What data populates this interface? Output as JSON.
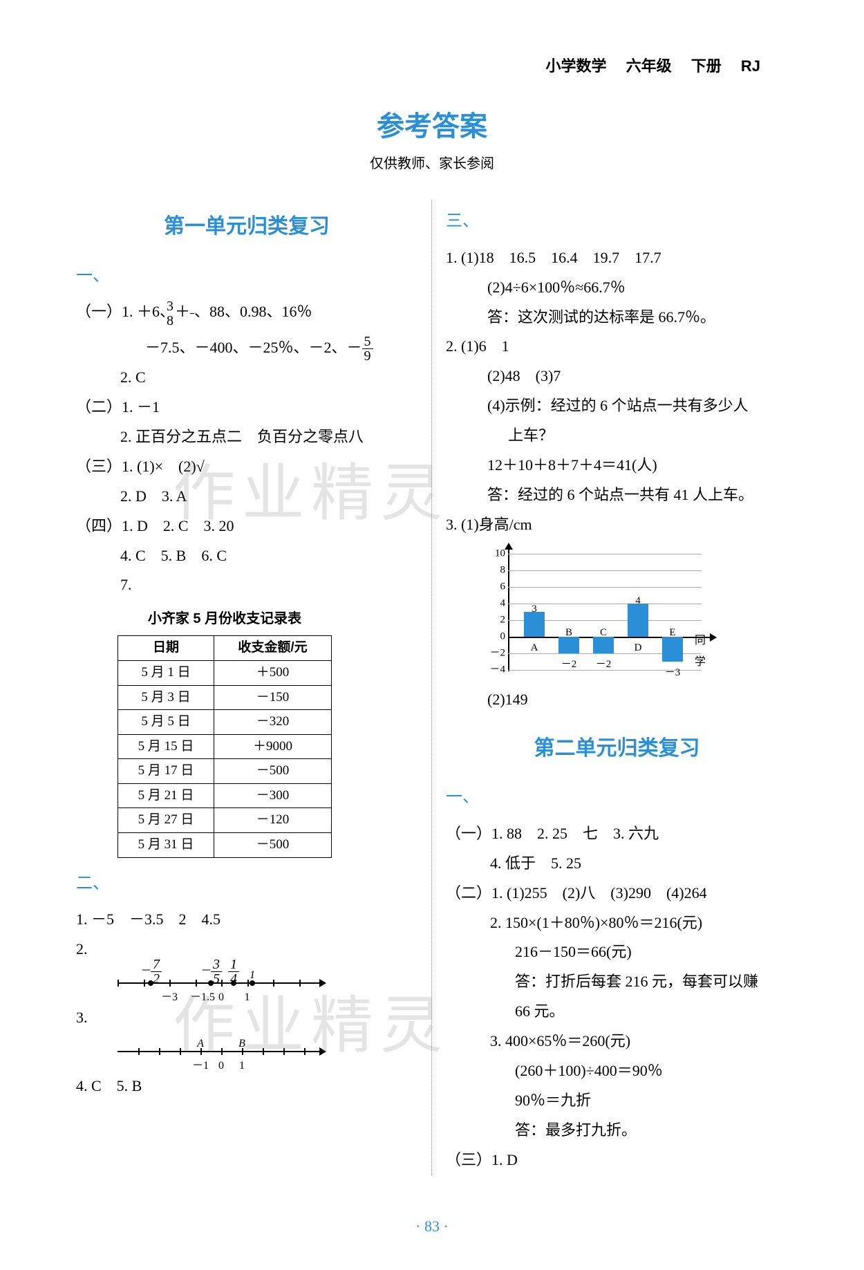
{
  "header": {
    "course": "小学数学",
    "grade": "六年级",
    "volume": "下册",
    "code": "RJ"
  },
  "title": "参考答案",
  "subtitle": "仅供教师、家长参阅",
  "unit1_title": "第一单元归类复习",
  "unit2_title": "第二单元归类复习",
  "sec_yi": "一、",
  "sec_er": "二、",
  "sec_san": "三、",
  "left": {
    "l1_1a": "（一）1.  ＋6、＋",
    "frac38_n": "3",
    "frac38_d": "8",
    "l1_1b": "、88、0.98、16％",
    "l1_1c": "－7.5、－400、－25％、－2、－",
    "frac59_n": "5",
    "frac59_d": "9",
    "l1_2": "2.  C",
    "l2_1": "（二）1.  －1",
    "l2_2": "2.  正百分之五点二　负百分之零点八",
    "l3_1": "（三）1.  (1)×　(2)√",
    "l3_2": "2.  D　3.  A",
    "l4_1": "（四）1.  D　2.  C　3.  20",
    "l4_2": "4.  C　5.  B　6.  C",
    "l4_3": "7.",
    "tbl_title": "小齐家 5 月份收支记录表",
    "tbl_cols": [
      "日期",
      "收支金额/元"
    ],
    "tbl_rows": [
      [
        "5 月 1 日",
        "＋500"
      ],
      [
        "5 月 3 日",
        "－150"
      ],
      [
        "5 月 5 日",
        "－320"
      ],
      [
        "5 月 15 日",
        "＋9000"
      ],
      [
        "5 月 17 日",
        "－500"
      ],
      [
        "5 月 21 日",
        "－300"
      ],
      [
        "5 月 27 日",
        "－120"
      ],
      [
        "5 月 31 日",
        "－500"
      ]
    ],
    "s2_1": "1.  －5　－3.5　2　4.5",
    "s2_2": "2.",
    "nl1": {
      "top": [
        {
          "x": 16,
          "label_n": "7",
          "label_d": "2",
          "neg": true
        },
        {
          "x": 45,
          "label_n": "3",
          "label_d": "5",
          "neg": true
        },
        {
          "x": 56,
          "label_n": "1",
          "label_d": "4"
        },
        {
          "x": 65,
          "label": "1"
        }
      ],
      "ticks": [
        0,
        12.5,
        25,
        37.5,
        50,
        62.5,
        75,
        87.5
      ],
      "dots": [
        16,
        45,
        56,
        65
      ],
      "bottom": [
        {
          "x": 25,
          "label": "－3"
        },
        {
          "x": 41,
          "label": "－1.5"
        },
        {
          "x": 50,
          "label": "0"
        },
        {
          "x": 62.5,
          "label": "1"
        }
      ]
    },
    "s2_3": "3.",
    "nl2": {
      "top": [
        {
          "x": 40,
          "label": "A"
        },
        {
          "x": 60,
          "label": "B"
        }
      ],
      "ticks": [
        10,
        20,
        30,
        40,
        50,
        60,
        70,
        80,
        90
      ],
      "bottom": [
        {
          "x": 40,
          "label": "－1"
        },
        {
          "x": 50,
          "label": "0"
        },
        {
          "x": 60,
          "label": "1"
        }
      ]
    },
    "s2_4": "4.  C　5.  B"
  },
  "right": {
    "r1_1": "1.  (1)18　16.5　16.4　19.7　17.7",
    "r1_2": "(2)4÷6×100％≈66.7％",
    "r1_3": "答：这次测试的达标率是 66.7％。",
    "r2_1": "2.  (1)6　1",
    "r2_2": "(2)48　(3)7",
    "r2_3": "(4)示例：经过的 6 个站点一共有多少人",
    "r2_4": "上车？",
    "r2_5": "12＋10＋8＋7＋4＝41(人)",
    "r2_6": "答：经过的 6 个站点一共有 41 人上车。",
    "r3_1": "3.  (1)身高/cm",
    "chart": {
      "type": "bar",
      "y_ticks": [
        10,
        8,
        6,
        4,
        2,
        0,
        -2,
        -4
      ],
      "zero_y": 140,
      "unit": 12,
      "bar_color": "#2a8fd6",
      "bars": [
        {
          "label": "A",
          "value": 3,
          "x": 78
        },
        {
          "label": "B",
          "value": -2,
          "x": 128
        },
        {
          "label": "C",
          "value": -2,
          "x": 178
        },
        {
          "label": "D",
          "value": 4,
          "x": 228
        },
        {
          "label": "E",
          "value": -3,
          "x": 278
        }
      ],
      "xlabel": "同学"
    },
    "r3_2": "(2)149",
    "u2_1_1": "（一）1.  88　2.  25　七　3.  六九",
    "u2_1_2": "4.  低于　5.  25",
    "u2_2_1": "（二）1.  (1)255　(2)八　(3)290　(4)264",
    "u2_2_2": "2.  150×(1＋80％)×80％＝216(元)",
    "u2_2_3": "216－150＝66(元)",
    "u2_2_4": "答：打折后每套 216 元，每套可以赚",
    "u2_2_5": "66 元。",
    "u2_2_6": "3.  400×65％＝260(元)",
    "u2_2_7": "(260＋100)÷400＝90％",
    "u2_2_8": "90％＝九折",
    "u2_2_9": "答：最多打九折。",
    "u2_3_1": "（三）1.  D"
  },
  "watermark": "作业精灵",
  "page": "· 83 ·"
}
